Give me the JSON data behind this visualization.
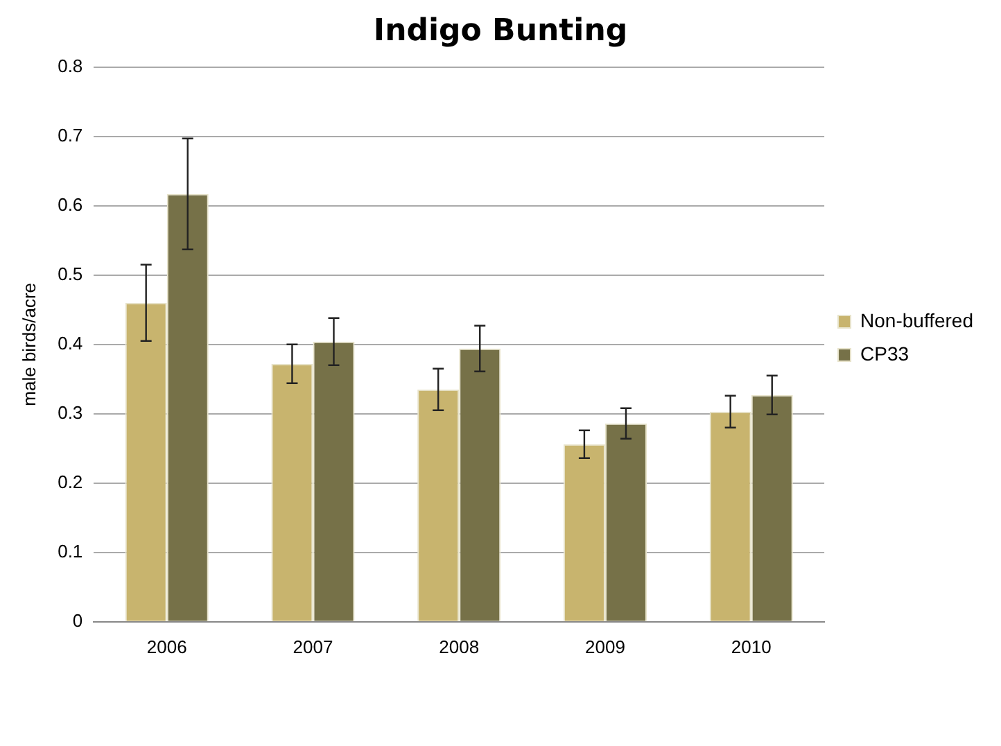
{
  "chart_data": {
    "type": "bar",
    "title": "Indigo Bunting",
    "ylabel": "male birds/acre",
    "categories": [
      "2006",
      "2007",
      "2008",
      "2009",
      "2010"
    ],
    "series": [
      {
        "name": "Non-buffered",
        "color": "#c8b46e",
        "values": [
          0.46,
          0.372,
          0.335,
          0.256,
          0.303
        ],
        "errors": [
          0.055,
          0.028,
          0.03,
          0.02,
          0.023
        ]
      },
      {
        "name": "CP33",
        "color": "#767148",
        "values": [
          0.617,
          0.404,
          0.394,
          0.286,
          0.327
        ],
        "errors": [
          0.08,
          0.034,
          0.033,
          0.022,
          0.028
        ]
      }
    ],
    "ylim": [
      0,
      0.8
    ],
    "yticks": [
      0,
      0.1,
      0.2,
      0.3,
      0.4,
      0.5,
      0.6,
      0.7,
      0.8
    ],
    "grid": "y",
    "legend": "right"
  }
}
